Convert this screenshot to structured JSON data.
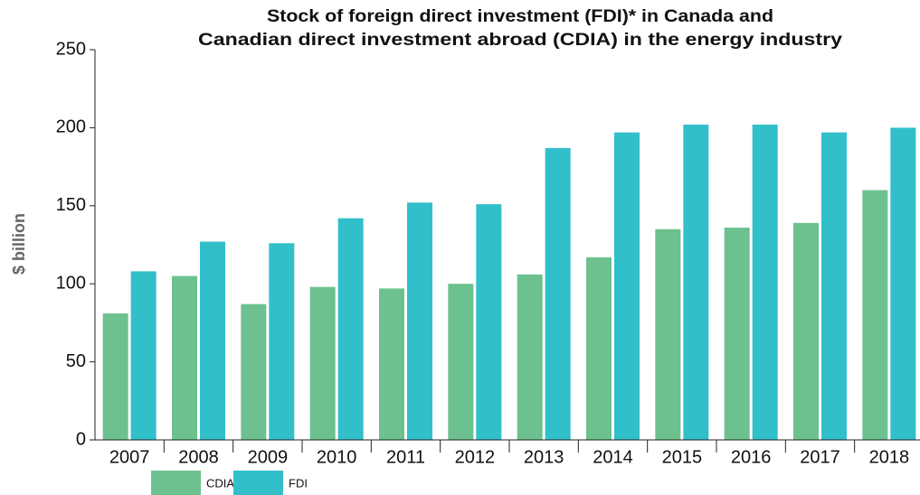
{
  "chart_data": {
    "type": "bar",
    "title": [
      "Stock of foreign direct investment (FDI)* in Canada and",
      "Canadian direct investment abroad (CDIA) in the energy industry"
    ],
    "ylabel": "$ billion",
    "categories": [
      "2007",
      "2008",
      "2009",
      "2010",
      "2011",
      "2012",
      "2013",
      "2014",
      "2015",
      "2016",
      "2017",
      "2018"
    ],
    "series": [
      {
        "name": "CDIA",
        "color": "#6cc18e",
        "values": [
          81,
          105,
          87,
          98,
          97,
          100,
          106,
          117,
          135,
          136,
          139,
          160
        ]
      },
      {
        "name": "FDI",
        "color": "#31bfca",
        "values": [
          108,
          127,
          126,
          142,
          152,
          151,
          187,
          197,
          202,
          202,
          197,
          200
        ]
      }
    ],
    "ylim": [
      0,
      250
    ],
    "yticks": [
      0,
      50,
      100,
      150,
      200,
      250
    ],
    "legend": "bottom-left"
  }
}
